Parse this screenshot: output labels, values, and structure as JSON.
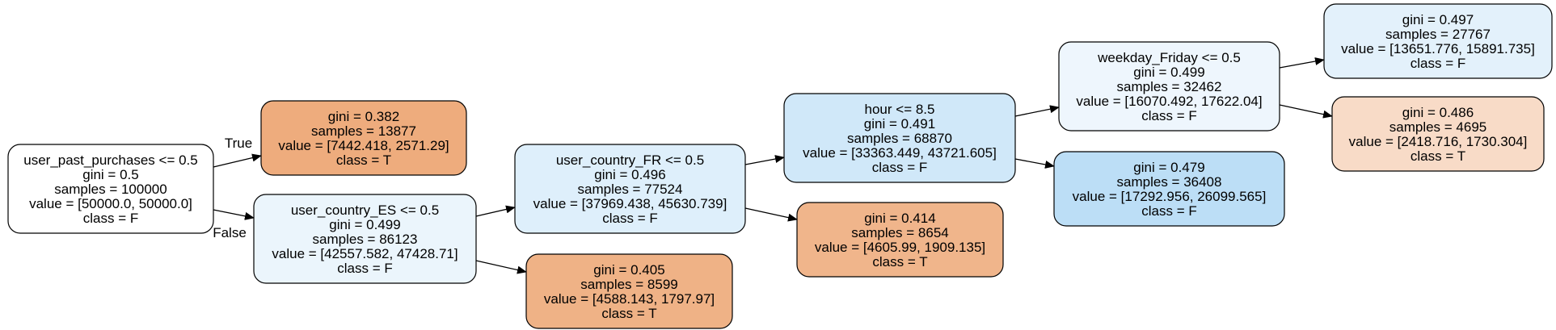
{
  "tree": {
    "nodes": [
      {
        "id": "root",
        "lines": [
          "user_past_purchases <= 0.5",
          "gini = 0.5",
          "samples = 100000",
          "value = [50000.0, 50000.0]",
          "class = F"
        ],
        "fill": "#ffffff"
      },
      {
        "id": "n1",
        "lines": [
          "gini = 0.382",
          "samples = 13877",
          "value = [7442.418, 2571.29]",
          "class = T"
        ],
        "fill": "#eeac7d"
      },
      {
        "id": "n2",
        "lines": [
          "user_country_ES <= 0.5",
          "gini = 0.499",
          "samples = 86123",
          "value = [42557.582, 47428.71]",
          "class = F"
        ],
        "fill": "#ebf5fc"
      },
      {
        "id": "n3",
        "lines": [
          "user_country_FR <= 0.5",
          "gini = 0.496",
          "samples = 77524",
          "value = [37969.438, 45630.739]",
          "class = F"
        ],
        "fill": "#deeffb"
      },
      {
        "id": "n4",
        "lines": [
          "gini = 0.405",
          "samples = 8599",
          "value = [4588.143, 1797.97]",
          "class = T"
        ],
        "fill": "#efb286"
      },
      {
        "id": "n5",
        "lines": [
          "hour <= 8.5",
          "gini = 0.491",
          "samples = 68870",
          "value = [33363.449, 43721.605]",
          "class = F"
        ],
        "fill": "#d0e8f9"
      },
      {
        "id": "n6",
        "lines": [
          "gini = 0.414",
          "samples = 8654",
          "value = [4605.99, 1909.135]",
          "class = T"
        ],
        "fill": "#f0b58b"
      },
      {
        "id": "n7",
        "lines": [
          "weekday_Friday <= 0.5",
          "gini = 0.499",
          "samples = 32462",
          "value = [16070.492, 17622.04]",
          "class = F"
        ],
        "fill": "#eef6fd"
      },
      {
        "id": "n8",
        "lines": [
          "gini = 0.479",
          "samples = 36408",
          "value = [17292.956, 26099.565]",
          "class = F"
        ],
        "fill": "#bcdef6"
      },
      {
        "id": "n9",
        "lines": [
          "gini = 0.497",
          "samples = 27767",
          "value = [13651.776, 15891.735]",
          "class = F"
        ],
        "fill": "#e3f1fb"
      },
      {
        "id": "n10",
        "lines": [
          "gini = 0.486",
          "samples = 4695",
          "value = [2418.716, 1730.304]",
          "class = T"
        ],
        "fill": "#f8dbc7"
      }
    ],
    "edges": [
      {
        "from": "root",
        "to": "n1",
        "label": "True"
      },
      {
        "from": "root",
        "to": "n2",
        "label": "False"
      },
      {
        "from": "n2",
        "to": "n3",
        "label": ""
      },
      {
        "from": "n2",
        "to": "n4",
        "label": ""
      },
      {
        "from": "n3",
        "to": "n5",
        "label": ""
      },
      {
        "from": "n3",
        "to": "n6",
        "label": ""
      },
      {
        "from": "n5",
        "to": "n7",
        "label": ""
      },
      {
        "from": "n5",
        "to": "n8",
        "label": ""
      },
      {
        "from": "n7",
        "to": "n9",
        "label": ""
      },
      {
        "from": "n7",
        "to": "n10",
        "label": ""
      }
    ]
  }
}
